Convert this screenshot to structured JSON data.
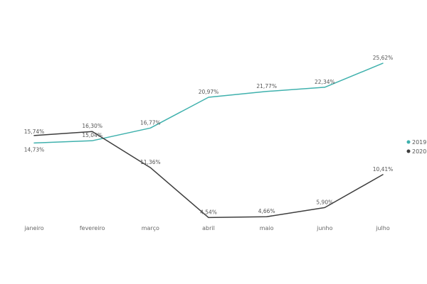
{
  "chart_data": {
    "type": "line",
    "title": "",
    "xlabel": "",
    "ylabel": "",
    "categories": [
      "janeiro",
      "fevereiro",
      "março",
      "abril",
      "maio",
      "junho",
      "julho"
    ],
    "ylim": [
      4.0,
      26.5
    ],
    "grid": false,
    "legend_position": "right",
    "series": [
      {
        "name": "2019",
        "color": "#3fb1ad",
        "values": [
          14.73,
          15.04,
          16.77,
          20.97,
          21.77,
          22.34,
          25.62
        ],
        "labels": [
          "14,73%",
          "15,04%",
          "16,77%",
          "20,97%",
          "21,77%",
          "22,34%",
          "25,62%"
        ]
      },
      {
        "name": "2020",
        "color": "#3d3d3d",
        "values": [
          15.74,
          16.3,
          11.36,
          4.54,
          4.66,
          5.9,
          10.41
        ],
        "labels": [
          "15,74%",
          "16,30%",
          "11,36%",
          "4,54%",
          "4,66%",
          "5,90%",
          "10,41%"
        ]
      }
    ]
  }
}
